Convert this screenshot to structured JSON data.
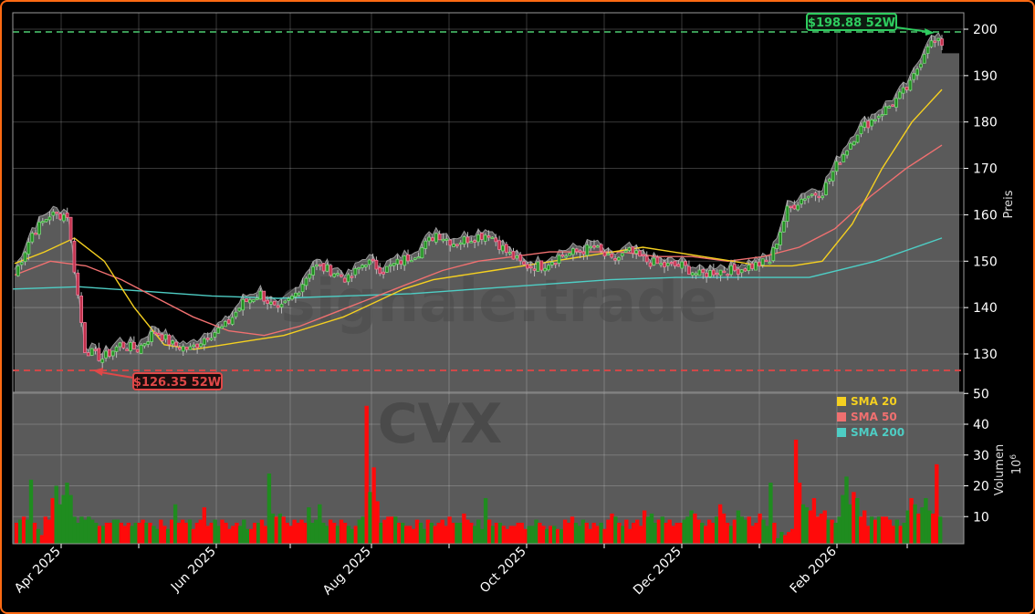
{
  "chart_data": [
    {
      "type": "candlestick",
      "title": "",
      "ticker_watermark": "CVX",
      "site_watermark": "signale.trade",
      "ylabel": "Preis",
      "ylim": [
        122,
        203
      ],
      "yticks": [
        130,
        140,
        150,
        160,
        170,
        180,
        190,
        200
      ],
      "xticks": [
        "Apr 2025",
        "Jun 2025",
        "Aug 2025",
        "Oct 2025",
        "Dec 2025",
        "Feb 2026"
      ],
      "grid": true,
      "annotations": [
        {
          "label": "$198.88 52W",
          "value": 198.88,
          "color": "#2ecc5f",
          "type": "52w-high"
        },
        {
          "label": "$126.35 52W",
          "value": 126.35,
          "color": "#e04848",
          "type": "52w-low"
        }
      ],
      "legend": [
        {
          "name": "SMA 20",
          "color": "#f5d020"
        },
        {
          "name": "SMA 50",
          "color": "#f07070"
        },
        {
          "name": "SMA 200",
          "color": "#4ecdc4"
        }
      ],
      "legend_position": "upper-left of volume panel",
      "series": [
        {
          "name": "Close (approx)",
          "x": [
            "2025-03-10",
            "2025-03-17",
            "2025-03-24",
            "2025-03-31",
            "2025-04-07",
            "2025-04-14",
            "2025-04-21",
            "2025-04-28",
            "2025-05-05",
            "2025-05-12",
            "2025-05-19",
            "2025-05-26",
            "2025-06-02",
            "2025-06-09",
            "2025-06-16",
            "2025-06-23",
            "2025-06-30",
            "2025-07-07",
            "2025-07-14",
            "2025-07-21",
            "2025-07-28",
            "2025-08-04",
            "2025-08-11",
            "2025-08-18",
            "2025-08-25",
            "2025-09-01",
            "2025-09-08",
            "2025-09-15",
            "2025-09-22",
            "2025-09-29",
            "2025-10-06",
            "2025-10-13",
            "2025-10-20",
            "2025-10-27",
            "2025-11-03",
            "2025-11-10",
            "2025-11-17",
            "2025-11-24",
            "2025-12-01",
            "2025-12-08",
            "2025-12-15",
            "2025-12-22",
            "2025-12-29",
            "2026-01-05",
            "2026-01-12",
            "2026-01-19",
            "2026-01-26",
            "2026-02-02",
            "2026-02-09",
            "2026-02-16",
            "2026-02-23",
            "2026-03-02",
            "2026-03-09"
          ],
          "values": [
            147,
            156,
            160,
            160,
            131,
            129,
            132,
            131,
            135,
            132,
            131,
            134,
            136,
            141,
            143,
            139,
            143,
            149,
            148,
            146,
            150,
            148,
            150,
            152,
            156,
            154,
            155,
            156,
            152,
            149,
            149,
            151,
            152,
            153,
            150,
            152,
            150,
            149,
            149,
            147,
            148,
            148,
            149,
            150,
            161,
            164,
            165,
            172,
            178,
            181,
            184,
            188,
            197
          ]
        },
        {
          "name": "SMA 20",
          "values_sampled": [
            149.5,
            152,
            155,
            150,
            140,
            132,
            131,
            132,
            133,
            134,
            136,
            138,
            141,
            144,
            146,
            147,
            148,
            149,
            150,
            151,
            152,
            153,
            152,
            151,
            150,
            149,
            149,
            150,
            158,
            170,
            180,
            187
          ]
        },
        {
          "name": "SMA 50",
          "values_sampled": [
            147,
            150,
            149,
            146,
            142,
            138,
            135,
            134,
            136,
            139,
            142,
            145,
            148,
            150,
            151,
            152,
            152,
            152,
            151,
            151,
            150,
            151,
            153,
            157,
            164,
            170,
            175
          ]
        },
        {
          "name": "SMA 200",
          "values_sampled": [
            144,
            144.5,
            143.5,
            142.5,
            142,
            142.5,
            143,
            144,
            145,
            146,
            146.5,
            146.5,
            146.5,
            150,
            155
          ]
        }
      ]
    },
    {
      "type": "bar",
      "ylabel": "Volumen",
      "yunit": "10^6",
      "ylim": [
        0,
        52
      ],
      "yticks": [
        10,
        20,
        30,
        40,
        50
      ],
      "notes": "daily volume bars, green = up day, red = down day; notable spikes ~46 (Jul 2025), ~35 (Jan 2026), ~27 (latest), ~24 (Jun 2025)",
      "series": [
        {
          "name": "Volume (approx, millions)",
          "values": [
            8,
            9,
            10,
            9,
            22,
            8,
            6,
            4,
            10,
            9,
            16,
            20,
            14,
            17,
            21,
            17,
            10,
            8,
            10,
            9,
            10,
            9,
            8,
            7,
            7,
            8,
            8,
            9,
            9,
            8,
            7,
            8,
            7,
            8,
            8,
            9,
            8,
            8,
            7,
            6,
            9,
            7,
            6,
            9,
            14,
            8,
            9,
            8,
            9,
            6,
            8,
            9,
            13,
            7,
            8,
            9,
            7,
            9,
            8,
            6,
            7,
            8,
            7,
            9,
            6,
            6,
            8,
            8,
            9,
            7,
            24,
            11,
            10,
            11,
            10,
            8,
            7,
            9,
            8,
            9,
            8,
            13,
            8,
            9,
            14,
            8,
            7,
            9,
            8,
            7,
            9,
            8,
            7,
            6,
            7,
            9,
            10,
            46,
            18,
            26,
            15,
            8,
            9,
            10,
            10,
            10,
            8,
            8,
            7,
            7,
            6,
            9,
            8,
            6,
            9,
            8,
            7,
            8,
            9,
            7,
            10,
            8,
            8,
            8,
            11,
            9,
            8,
            7,
            9,
            6,
            16,
            9,
            7,
            8,
            8,
            7,
            6,
            7,
            7,
            8,
            8,
            6,
            7,
            7,
            9,
            8,
            7,
            6,
            7,
            7,
            6,
            6,
            9,
            8,
            10,
            8,
            7,
            9,
            8,
            6,
            8,
            7,
            8,
            6,
            9,
            11,
            10,
            8,
            7,
            9,
            6,
            8,
            9,
            7,
            12,
            10,
            11,
            8,
            9,
            10,
            8,
            9,
            7,
            8,
            8,
            9,
            10,
            12,
            11,
            9,
            8,
            7,
            9,
            8,
            10,
            14,
            11,
            8,
            7,
            9,
            12,
            10,
            9,
            10,
            7,
            8,
            11,
            9,
            7,
            21,
            8,
            3,
            5,
            4,
            5,
            6,
            35,
            21,
            14,
            13,
            12,
            16,
            10,
            11,
            12,
            9,
            9,
            8,
            10,
            17,
            23,
            14,
            18,
            16,
            10,
            12,
            7,
            10,
            9,
            10,
            10,
            10,
            9,
            7,
            9,
            7,
            8,
            12,
            16,
            14,
            11,
            13,
            16,
            12,
            11,
            27,
            10
          ]
        }
      ]
    }
  ],
  "ui": {
    "price_axis_label": "Preis",
    "volume_axis_label": "Volumen",
    "volume_axis_unit": "10",
    "volume_axis_unit_exp": "6",
    "high_label": "$198.88 52W",
    "low_label": "$126.35 52W",
    "watermark_site": "signale.trade",
    "watermark_ticker": "CVX",
    "legend": {
      "sma20": "SMA 20",
      "sma50": "SMA 50",
      "sma200": "SMA 200"
    },
    "price_ticks": [
      "200",
      "190",
      "180",
      "170",
      "160",
      "150",
      "140",
      "130"
    ],
    "vol_ticks": [
      "50",
      "40",
      "30",
      "20",
      "10"
    ],
    "x_ticks": [
      "Apr 2025",
      "Jun 2025",
      "Aug 2025",
      "Oct 2025",
      "Dec 2025",
      "Feb 2026"
    ],
    "colors": {
      "up": "#1f8c1f",
      "down": "#ff0a0a",
      "frame": "#ff6a13",
      "area": "#5a5a5a",
      "high": "#2ecc5f",
      "low": "#e04848"
    }
  }
}
